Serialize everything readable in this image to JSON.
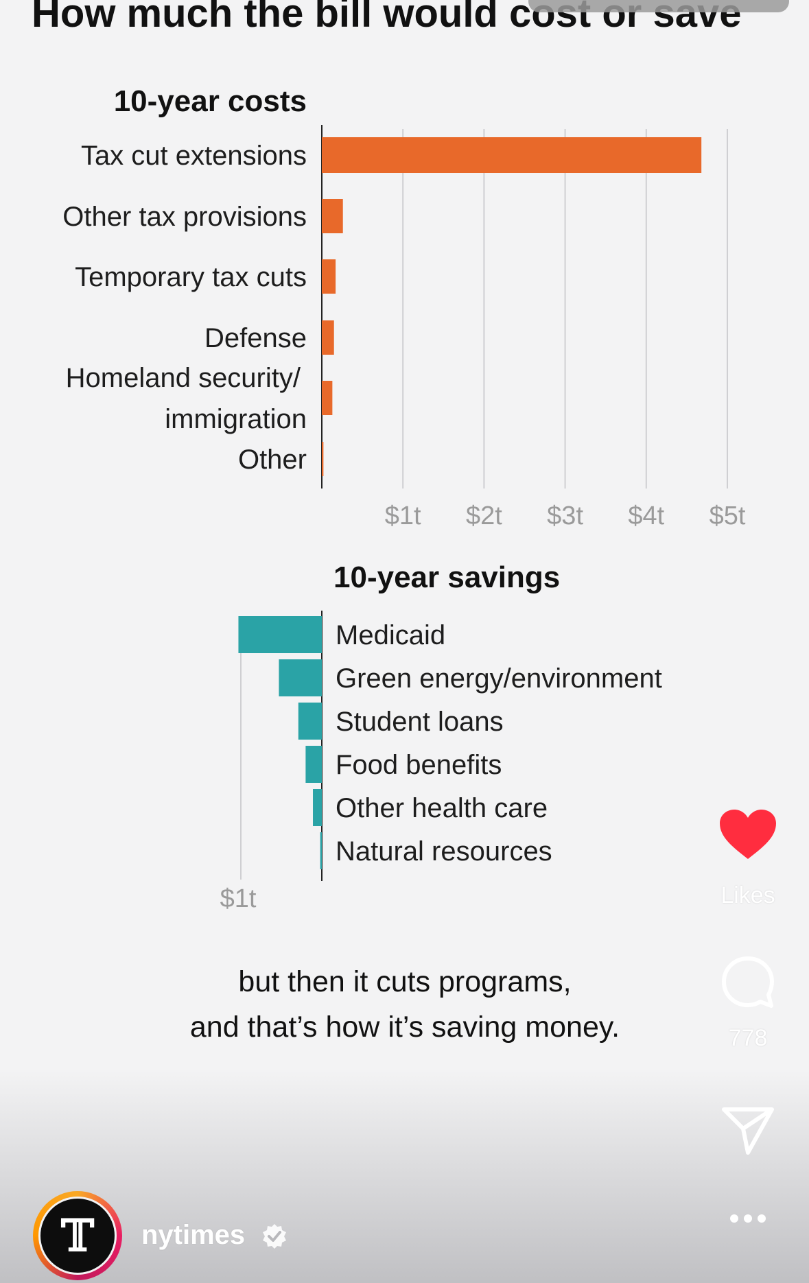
{
  "title": "How much the bill would cost or save",
  "chart_data": [
    {
      "type": "bar",
      "orientation": "horizontal",
      "title": "10-year costs",
      "categories": [
        "Tax cut extensions",
        "Other tax provisions",
        "Temporary tax cuts",
        "Defense",
        "Homeland security/ immigration",
        "Other"
      ],
      "label_lines": [
        [
          "Tax cut extensions"
        ],
        [
          "Other tax provisions"
        ],
        [
          "Temporary tax cuts"
        ],
        [
          "Defense"
        ],
        [
          "Homeland security/",
          "immigration"
        ],
        [
          "Other"
        ]
      ],
      "values": [
        4.68,
        0.26,
        0.17,
        0.15,
        0.13,
        0.02
      ],
      "xticks": [
        "$1t",
        "$2t",
        "$3t",
        "$4t",
        "$5t"
      ],
      "xlim": [
        0,
        5
      ],
      "grid": true,
      "color": "#e8692a"
    },
    {
      "type": "bar",
      "orientation": "horizontal",
      "title": "10-year savings",
      "categories": [
        "Medicaid",
        "Green energy/environment",
        "Student loans",
        "Food benefits",
        "Other health care",
        "Natural resources"
      ],
      "values": [
        -1.03,
        -0.53,
        -0.29,
        -0.2,
        -0.11,
        -0.02
      ],
      "xticks": [
        "$1t"
      ],
      "xlim": [
        -1,
        0
      ],
      "grid": true,
      "color": "#2aa3a6"
    }
  ],
  "caption": {
    "line1": "but then it cuts programs,",
    "line2": "and that’s how it’s saving money."
  },
  "actions": {
    "likes_label": "Likes",
    "comment_count": "778"
  },
  "account": {
    "username": "nytimes",
    "avatar_glyph": "𝕋"
  },
  "colors": {
    "like": "#ff2d3f",
    "costs": "#e8692a",
    "savings": "#2aa3a6"
  },
  "icons": [
    "heart-icon",
    "comment-icon",
    "send-icon",
    "more-icon",
    "verified-icon"
  ]
}
